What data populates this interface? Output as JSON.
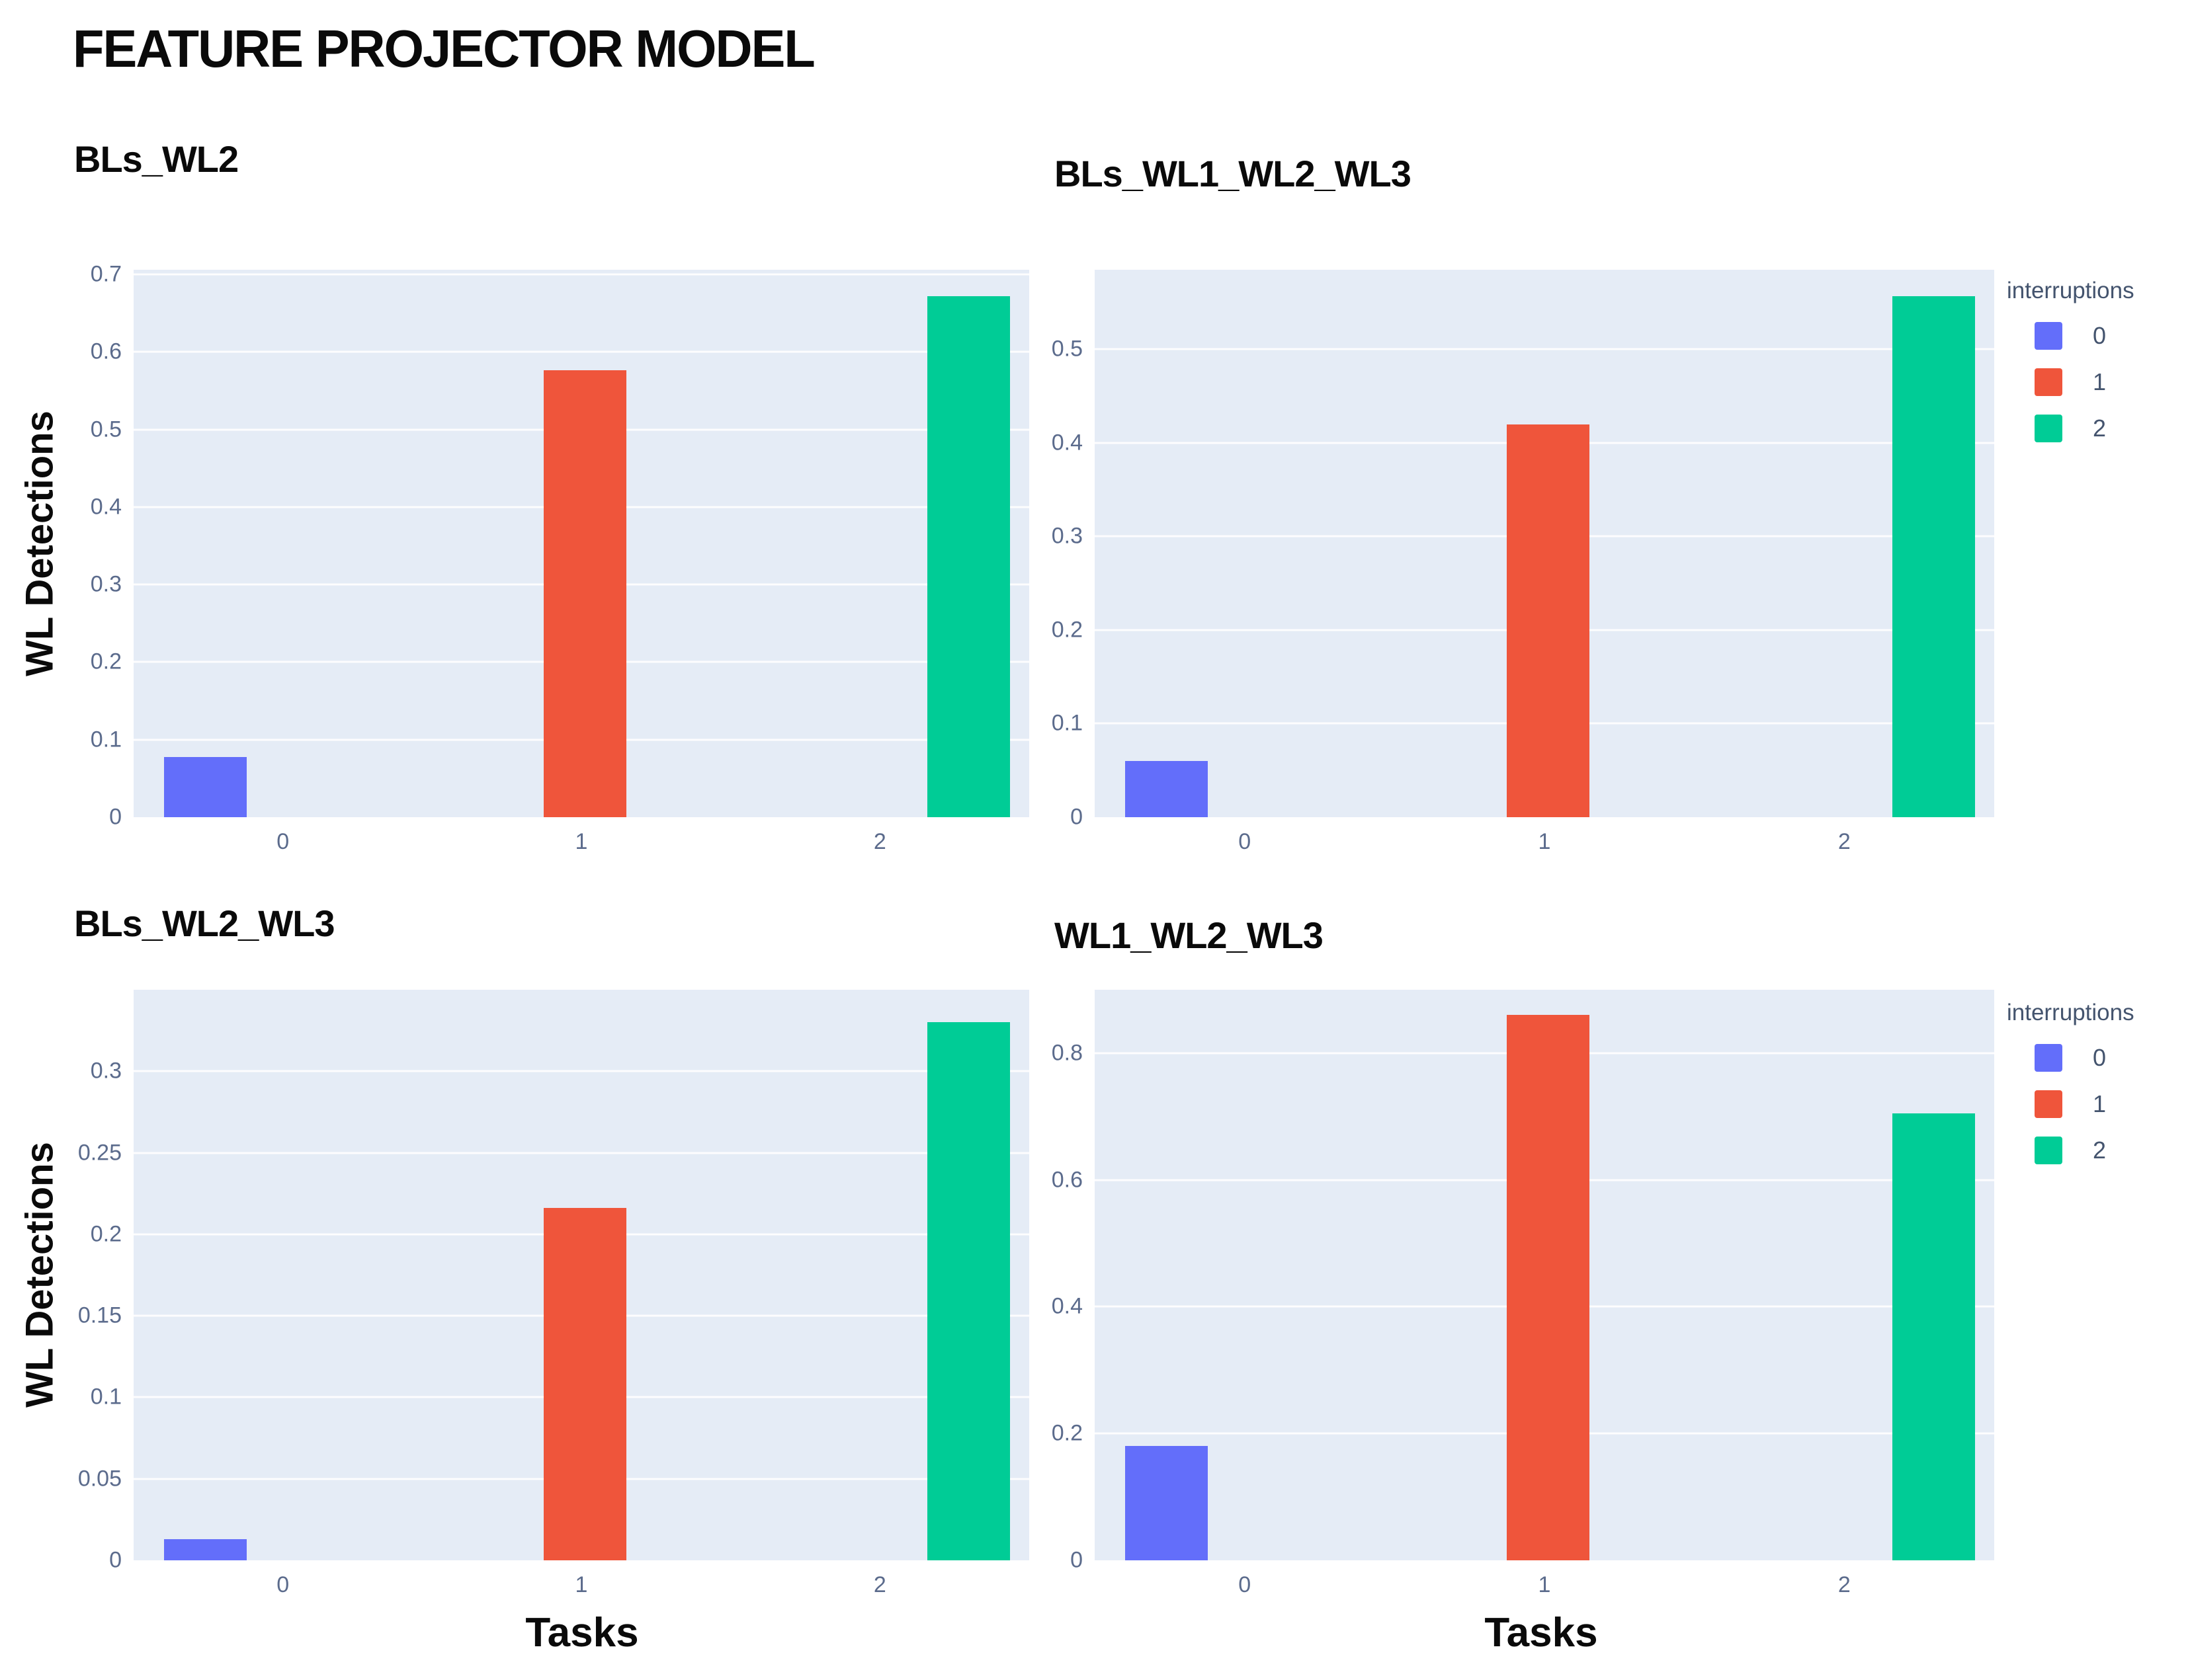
{
  "page": {
    "title": "FEATURE PROJECTOR MODEL"
  },
  "axis": {
    "x_label": "Tasks",
    "y_label": "WL Detections"
  },
  "legend": {
    "title": "interruptions",
    "items": [
      {
        "label": "0",
        "color": "#636EFA"
      },
      {
        "label": "1",
        "color": "#EF553B"
      },
      {
        "label": "2",
        "color": "#00CC96"
      }
    ]
  },
  "style": {
    "plot_bg": "#E5ECF6",
    "grid_color": "#FFFFFF",
    "tick_color": "#5b6b8c",
    "title_color": "#0a0a0a"
  },
  "chart_data": [
    {
      "type": "bar",
      "title": "BLs_WL2",
      "xlabel": "Tasks",
      "ylabel": "WL Detections",
      "categories": [
        "0",
        "1",
        "2"
      ],
      "legend_group": "interruptions",
      "bars": [
        {
          "category": "0",
          "interruptions": "0",
          "value": 0.078
        },
        {
          "category": "1",
          "interruptions": "1",
          "value": 0.576
        },
        {
          "category": "2",
          "interruptions": "2",
          "value": 0.672
        }
      ],
      "yticks": [
        "0",
        "0.1",
        "0.2",
        "0.3",
        "0.4",
        "0.5",
        "0.6",
        "0.7"
      ],
      "ylim": [
        0,
        0.706
      ],
      "grid": true,
      "legend_visible": false
    },
    {
      "type": "bar",
      "title": "BLs_WL1_WL2_WL3",
      "xlabel": "Tasks",
      "ylabel": "WL Detections",
      "categories": [
        "0",
        "1",
        "2"
      ],
      "legend_group": "interruptions",
      "bars": [
        {
          "category": "0",
          "interruptions": "0",
          "value": 0.06
        },
        {
          "category": "1",
          "interruptions": "1",
          "value": 0.42
        },
        {
          "category": "2",
          "interruptions": "2",
          "value": 0.557
        }
      ],
      "yticks": [
        "0",
        "0.1",
        "0.2",
        "0.3",
        "0.4",
        "0.5"
      ],
      "ylim": [
        0,
        0.585
      ],
      "grid": true,
      "legend_visible": true
    },
    {
      "type": "bar",
      "title": "BLs_WL2_WL3",
      "xlabel": "Tasks",
      "ylabel": "WL Detections",
      "categories": [
        "0",
        "1",
        "2"
      ],
      "legend_group": "interruptions",
      "bars": [
        {
          "category": "0",
          "interruptions": "0",
          "value": 0.013
        },
        {
          "category": "1",
          "interruptions": "1",
          "value": 0.216
        },
        {
          "category": "2",
          "interruptions": "2",
          "value": 0.33
        }
      ],
      "yticks": [
        "0",
        "0.05",
        "0.1",
        "0.15",
        "0.2",
        "0.25",
        "0.3"
      ],
      "ylim": [
        0,
        0.35
      ],
      "grid": true,
      "legend_visible": false
    },
    {
      "type": "bar",
      "title": "WL1_WL2_WL3",
      "xlabel": "Tasks",
      "ylabel": "WL Detections",
      "categories": [
        "0",
        "1",
        "2"
      ],
      "legend_group": "interruptions",
      "bars": [
        {
          "category": "0",
          "interruptions": "0",
          "value": 0.18
        },
        {
          "category": "1",
          "interruptions": "1",
          "value": 0.86
        },
        {
          "category": "2",
          "interruptions": "2",
          "value": 0.705
        }
      ],
      "yticks": [
        "0",
        "0.2",
        "0.4",
        "0.6",
        "0.8"
      ],
      "ylim": [
        0,
        0.9
      ],
      "grid": true,
      "legend_visible": true
    }
  ]
}
